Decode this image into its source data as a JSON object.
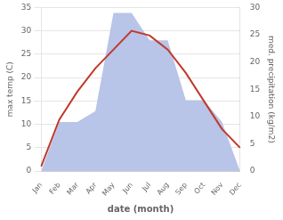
{
  "chart_data": {
    "type": "line",
    "xlabel": "date (month)",
    "ylabel": "max temp (C)",
    "y2label": "med. precipitation (kg/m2)",
    "categories": [
      "Jan",
      "Feb",
      "Mar",
      "Apr",
      "May",
      "Jun",
      "Jul",
      "Aug",
      "Sep",
      "Oct",
      "Nov",
      "Dec"
    ],
    "series": [
      {
        "type": "area",
        "axis": "y2",
        "color": "#b8c4e8",
        "values": [
          0,
          9,
          9,
          11,
          29,
          29,
          24,
          24,
          13,
          13,
          9,
          0
        ]
      },
      {
        "type": "line",
        "color": "#c0392b",
        "values": [
          1,
          11,
          17,
          22,
          26,
          30,
          29,
          26,
          21,
          15,
          9,
          5
        ]
      }
    ],
    "ylim": [
      0,
      35
    ],
    "yticks": [
      0,
      5,
      10,
      15,
      20,
      25,
      30,
      35
    ],
    "y2lim": [
      0,
      30
    ],
    "y2ticks": [
      0,
      5,
      10,
      15,
      20,
      25,
      30
    ],
    "grid": true
  }
}
